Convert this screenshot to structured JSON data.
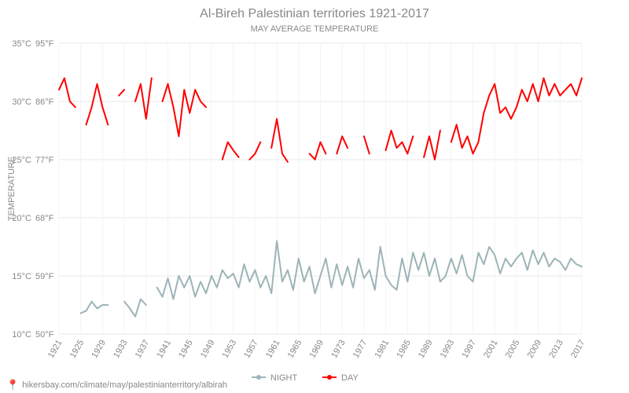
{
  "chart": {
    "type": "line",
    "title": "Al-Bireh Palestinian territories 1921-2017",
    "subtitle": "MAY AVERAGE TEMPERATURE",
    "title_fontsize": 16,
    "subtitle_fontsize": 11,
    "title_color": "#888888",
    "y_axis": {
      "label": "TEMPERATURE",
      "label_fontsize": 11,
      "min_c": 10,
      "max_c": 35,
      "ticks_c": [
        10,
        15,
        20,
        25,
        30,
        35
      ],
      "tick_labels_left": [
        "10°C",
        "15°C",
        "20°C",
        "25°C",
        "30°C",
        "35°C"
      ],
      "tick_labels_right": [
        "50°F",
        "59°F",
        "68°F",
        "77°F",
        "86°F",
        "95°F"
      ]
    },
    "x_axis": {
      "min": 1921,
      "max": 2017,
      "tick_step": 4,
      "ticks": [
        1921,
        1925,
        1929,
        1933,
        1937,
        1941,
        1945,
        1949,
        1953,
        1957,
        1961,
        1965,
        1969,
        1973,
        1977,
        1981,
        1985,
        1989,
        1993,
        1997,
        2001,
        2005,
        2009,
        2013,
        2017
      ]
    },
    "grid_color": "#e8e8e8",
    "background_color": "#ffffff",
    "series": {
      "night": {
        "label": "NIGHT",
        "color": "#9db3b8",
        "line_width": 2,
        "marker": "circle",
        "segments": [
          [
            [
              1925,
              11.8
            ],
            [
              1926,
              12.0
            ],
            [
              1927,
              12.8
            ],
            [
              1928,
              12.2
            ],
            [
              1929,
              12.5
            ],
            [
              1930,
              12.5
            ]
          ],
          [
            [
              1933,
              12.8
            ],
            [
              1934,
              12.2
            ],
            [
              1935,
              11.5
            ],
            [
              1936,
              13.0
            ],
            [
              1937,
              12.5
            ]
          ],
          [
            [
              1939,
              14.0
            ],
            [
              1940,
              13.2
            ],
            [
              1941,
              14.8
            ],
            [
              1942,
              13.0
            ],
            [
              1943,
              15.0
            ],
            [
              1944,
              14.0
            ],
            [
              1945,
              15.0
            ],
            [
              1946,
              13.2
            ],
            [
              1947,
              14.5
            ],
            [
              1948,
              13.5
            ],
            [
              1949,
              15.0
            ],
            [
              1950,
              14.0
            ],
            [
              1951,
              15.5
            ],
            [
              1952,
              14.8
            ],
            [
              1953,
              15.2
            ],
            [
              1954,
              14.0
            ],
            [
              1955,
              16.0
            ],
            [
              1956,
              14.5
            ],
            [
              1957,
              15.5
            ],
            [
              1958,
              14.0
            ],
            [
              1959,
              15.0
            ],
            [
              1960,
              13.5
            ],
            [
              1961,
              18.0
            ],
            [
              1962,
              14.5
            ],
            [
              1963,
              15.5
            ],
            [
              1964,
              13.8
            ],
            [
              1965,
              16.5
            ],
            [
              1966,
              14.5
            ],
            [
              1967,
              15.8
            ],
            [
              1968,
              13.5
            ],
            [
              1969,
              15.0
            ],
            [
              1970,
              16.5
            ],
            [
              1971,
              14.0
            ],
            [
              1972,
              16.0
            ],
            [
              1973,
              14.2
            ],
            [
              1974,
              15.8
            ],
            [
              1975,
              14.0
            ],
            [
              1976,
              16.5
            ],
            [
              1977,
              14.8
            ],
            [
              1978,
              15.5
            ],
            [
              1979,
              13.8
            ],
            [
              1980,
              17.5
            ],
            [
              1981,
              15.0
            ],
            [
              1982,
              14.2
            ],
            [
              1983,
              13.8
            ],
            [
              1984,
              16.5
            ],
            [
              1985,
              14.5
            ],
            [
              1986,
              17.0
            ],
            [
              1987,
              15.5
            ],
            [
              1988,
              17.0
            ],
            [
              1989,
              15.0
            ],
            [
              1990,
              16.5
            ],
            [
              1991,
              14.5
            ],
            [
              1992,
              15.0
            ],
            [
              1993,
              16.5
            ],
            [
              1994,
              15.2
            ],
            [
              1995,
              16.8
            ],
            [
              1996,
              15.0
            ],
            [
              1997,
              14.5
            ],
            [
              1998,
              17.0
            ],
            [
              1999,
              16.0
            ],
            [
              2000,
              17.5
            ],
            [
              2001,
              16.8
            ],
            [
              2002,
              15.2
            ],
            [
              2003,
              16.5
            ],
            [
              2004,
              15.8
            ],
            [
              2005,
              16.5
            ],
            [
              2006,
              17.0
            ],
            [
              2007,
              15.5
            ],
            [
              2008,
              17.2
            ],
            [
              2009,
              16.0
            ],
            [
              2010,
              17.0
            ],
            [
              2011,
              15.8
            ],
            [
              2012,
              16.5
            ],
            [
              2013,
              16.2
            ],
            [
              2014,
              15.5
            ],
            [
              2015,
              16.5
            ],
            [
              2016,
              16.0
            ],
            [
              2017,
              15.8
            ]
          ]
        ]
      },
      "day": {
        "label": "DAY",
        "color": "#ff0000",
        "line_width": 2,
        "marker": "circle",
        "segments": [
          [
            [
              1921,
              31.0
            ],
            [
              1922,
              32.0
            ],
            [
              1923,
              30.0
            ],
            [
              1924,
              29.5
            ]
          ],
          [
            [
              1926,
              28.0
            ],
            [
              1927,
              29.5
            ],
            [
              1928,
              31.5
            ],
            [
              1929,
              29.5
            ],
            [
              1930,
              28.0
            ]
          ],
          [
            [
              1932,
              30.5
            ],
            [
              1933,
              31.0
            ]
          ],
          [
            [
              1935,
              30.0
            ],
            [
              1936,
              31.5
            ],
            [
              1937,
              28.5
            ],
            [
              1938,
              32.0
            ]
          ],
          [
            [
              1940,
              30.0
            ],
            [
              1941,
              31.5
            ],
            [
              1942,
              29.5
            ],
            [
              1943,
              27.0
            ],
            [
              1944,
              31.0
            ],
            [
              1945,
              29.0
            ],
            [
              1946,
              31.0
            ],
            [
              1947,
              30.0
            ],
            [
              1948,
              29.5
            ]
          ],
          [
            [
              1951,
              25.0
            ],
            [
              1952,
              26.5
            ],
            [
              1953,
              25.8
            ],
            [
              1954,
              25.2
            ]
          ],
          [
            [
              1956,
              25.0
            ],
            [
              1957,
              25.5
            ],
            [
              1958,
              26.5
            ]
          ],
          [
            [
              1960,
              26.0
            ],
            [
              1961,
              28.5
            ],
            [
              1962,
              25.5
            ],
            [
              1963,
              24.8
            ]
          ],
          [
            [
              1967,
              25.5
            ],
            [
              1968,
              25.0
            ],
            [
              1969,
              26.5
            ],
            [
              1970,
              25.5
            ]
          ],
          [
            [
              1972,
              25.5
            ],
            [
              1973,
              27.0
            ],
            [
              1974,
              26.0
            ]
          ],
          [
            [
              1977,
              27.0
            ],
            [
              1978,
              25.5
            ]
          ],
          [
            [
              1981,
              25.8
            ],
            [
              1982,
              27.5
            ],
            [
              1983,
              26.0
            ],
            [
              1984,
              26.5
            ],
            [
              1985,
              25.5
            ],
            [
              1986,
              27.0
            ]
          ],
          [
            [
              1988,
              25.2
            ],
            [
              1989,
              27.0
            ],
            [
              1990,
              25.0
            ],
            [
              1991,
              27.5
            ]
          ],
          [
            [
              1993,
              26.5
            ],
            [
              1994,
              28.0
            ],
            [
              1995,
              26.0
            ],
            [
              1996,
              27.0
            ],
            [
              1997,
              25.5
            ],
            [
              1998,
              26.5
            ],
            [
              1999,
              29.0
            ],
            [
              2000,
              30.5
            ],
            [
              2001,
              31.5
            ],
            [
              2002,
              29.0
            ],
            [
              2003,
              29.5
            ],
            [
              2004,
              28.5
            ],
            [
              2005,
              29.5
            ],
            [
              2006,
              31.0
            ],
            [
              2007,
              30.0
            ],
            [
              2008,
              31.5
            ],
            [
              2009,
              30.0
            ],
            [
              2010,
              32.0
            ],
            [
              2011,
              30.5
            ],
            [
              2012,
              31.5
            ],
            [
              2013,
              30.5
            ],
            [
              2014,
              31.0
            ],
            [
              2015,
              31.5
            ],
            [
              2016,
              30.5
            ],
            [
              2017,
              32.0
            ]
          ]
        ]
      }
    },
    "legend": {
      "items": [
        {
          "key": "night",
          "label": "NIGHT"
        },
        {
          "key": "day",
          "label": "DAY"
        }
      ],
      "position": "bottom-center"
    }
  },
  "footer": {
    "icon": "pin",
    "text": "hikersbay.com/climate/may/palestinianterritory/albirah"
  }
}
